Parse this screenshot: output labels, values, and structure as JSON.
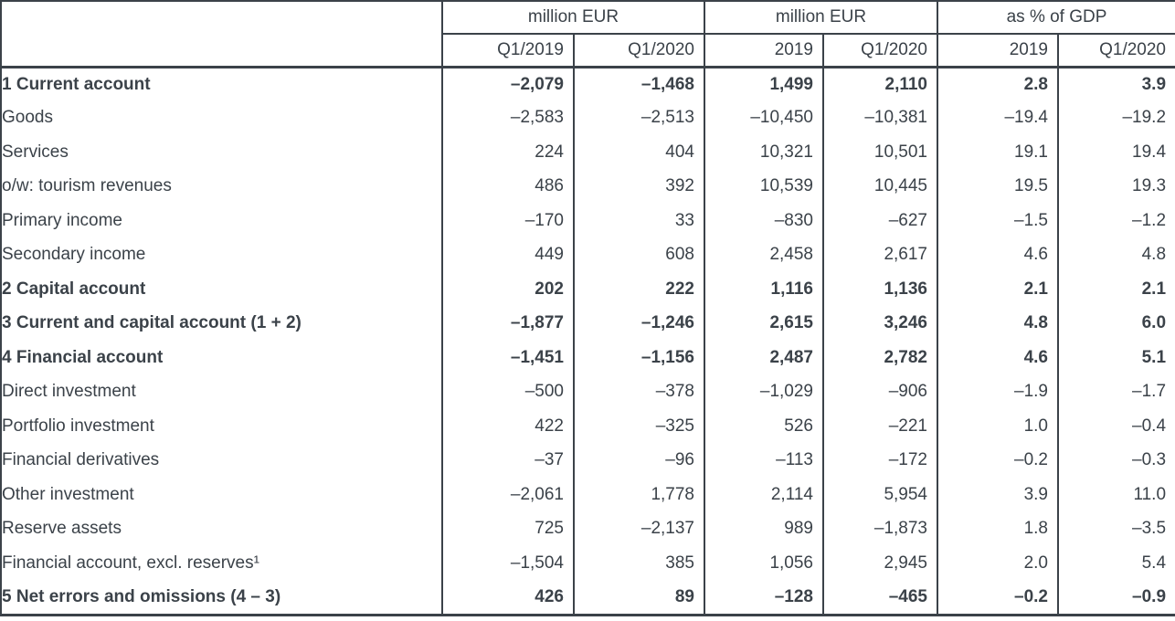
{
  "table": {
    "header": {
      "groups": [
        {
          "label": "million EUR",
          "span": 2
        },
        {
          "label": "million EUR",
          "span": 2
        },
        {
          "label": "as % of GDP",
          "span": 2
        }
      ],
      "columns": [
        "Q1/2019",
        "Q1/2020",
        "2019",
        "Q1/2020",
        "2019",
        "Q1/2020"
      ]
    },
    "rows": [
      {
        "label": "1 Current account",
        "bold": true,
        "indent": 0,
        "values": [
          "–2,079",
          "–1,468",
          "1,499",
          "2,110",
          "2.8",
          "3.9"
        ]
      },
      {
        "label": "Goods",
        "bold": false,
        "indent": 2,
        "values": [
          "–2,583",
          "–2,513",
          "–10,450",
          "–10,381",
          "–19.4",
          "–19.2"
        ]
      },
      {
        "label": "Services",
        "bold": false,
        "indent": 2,
        "values": [
          "224",
          "404",
          "10,321",
          "10,501",
          "19.1",
          "19.4"
        ]
      },
      {
        "label": "o/w: tourism revenues",
        "bold": false,
        "indent": 3,
        "values": [
          "486",
          "392",
          "10,539",
          "10,445",
          "19.5",
          "19.3"
        ]
      },
      {
        "label": "Primary income",
        "bold": false,
        "indent": 2,
        "values": [
          "–170",
          "33",
          "–830",
          "–627",
          "–1.5",
          "–1.2"
        ]
      },
      {
        "label": "Secondary income",
        "bold": false,
        "indent": 2,
        "values": [
          "449",
          "608",
          "2,458",
          "2,617",
          "4.6",
          "4.8"
        ]
      },
      {
        "label": "2 Capital account",
        "bold": true,
        "indent": 0,
        "values": [
          "202",
          "222",
          "1,116",
          "1,136",
          "2.1",
          "2.1"
        ]
      },
      {
        "label": "3 Current and capital account (1 + 2)",
        "bold": true,
        "indent": 0,
        "values": [
          "–1,877",
          "–1,246",
          "2,615",
          "3,246",
          "4.8",
          "6.0"
        ]
      },
      {
        "label": "4 Financial account",
        "bold": true,
        "indent": 0,
        "values": [
          "–1,451",
          "–1,156",
          "2,487",
          "2,782",
          "4.6",
          "5.1"
        ]
      },
      {
        "label": "Direct investment",
        "bold": false,
        "indent": 2,
        "values": [
          "–500",
          "–378",
          "–1,029",
          "–906",
          "–1.9",
          "–1.7"
        ]
      },
      {
        "label": "Portfolio investment",
        "bold": false,
        "indent": 2,
        "values": [
          "422",
          "–325",
          "526",
          "–221",
          "1.0",
          "–0.4"
        ]
      },
      {
        "label": "Financial derivatives",
        "bold": false,
        "indent": 2,
        "values": [
          "–37",
          "–96",
          "–113",
          "–172",
          "–0.2",
          "–0.3"
        ]
      },
      {
        "label": "Other investment",
        "bold": false,
        "indent": 2,
        "values": [
          "–2,061",
          "1,778",
          "2,114",
          "5,954",
          "3.9",
          "11.0"
        ]
      },
      {
        "label": "Reserve assets",
        "bold": false,
        "indent": 2,
        "values": [
          "725",
          "–2,137",
          "989",
          "–1,873",
          "1.8",
          "–3.5"
        ]
      },
      {
        "label": "Financial account, excl. reserves¹",
        "bold": false,
        "indent": 1,
        "values": [
          "–1,504",
          "385",
          "1,056",
          "2,945",
          "2.0",
          "5.4"
        ]
      },
      {
        "label": "5 Net errors and omissions (4 – 3)",
        "bold": true,
        "indent": 0,
        "values": [
          "426",
          "89",
          "–128",
          "–465",
          "–0.2",
          "–0.9"
        ]
      }
    ]
  },
  "colors": {
    "text": "#3b4249",
    "border": "#3b4249",
    "background": "#ffffff"
  }
}
